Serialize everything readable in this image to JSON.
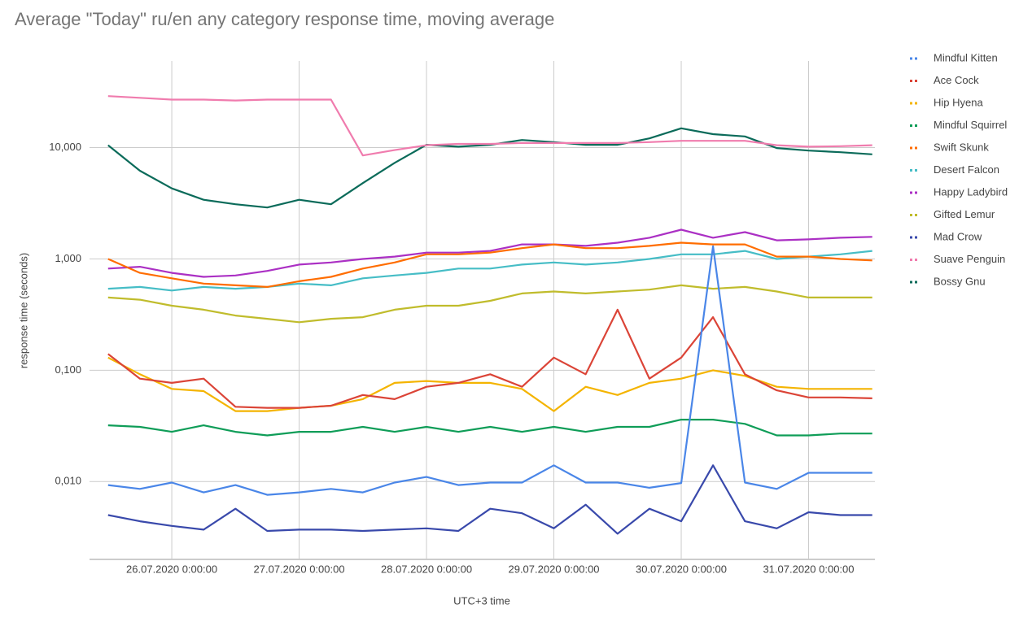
{
  "chart_data": {
    "type": "line",
    "title": "Average \"Today\" ru/en any category response time, moving average",
    "x_label": "UTC+3 time",
    "y_label": "response time (seconds)",
    "log_scale": true,
    "grid": true,
    "legend": "right",
    "xlim": [
      "25.07.2020 8:30:00",
      "31.07.2020 12:30:00"
    ],
    "xticks": [
      "26.07.2020 0:00:00",
      "27.07.2020 0:00:00",
      "28.07.2020 0:00:00",
      "29.07.2020 0:00:00",
      "30.07.2020 0:00:00",
      "31.07.2020 0:00:00"
    ],
    "ylim": [
      0.002,
      60
    ],
    "yticks": [
      {
        "value": 0.01,
        "label": "0,010"
      },
      {
        "value": 0.1,
        "label": "0,100"
      },
      {
        "value": 1,
        "label": "1,000"
      },
      {
        "value": 10,
        "label": "10,000"
      }
    ],
    "x": [
      "25.07.2020 12:00:00",
      "25.07.2020 18:00:00",
      "26.07.2020 0:00:00",
      "26.07.2020 6:00:00",
      "26.07.2020 12:00:00",
      "26.07.2020 18:00:00",
      "27.07.2020 0:00:00",
      "27.07.2020 6:00:00",
      "27.07.2020 12:00:00",
      "27.07.2020 18:00:00",
      "28.07.2020 0:00:00",
      "28.07.2020 6:00:00",
      "28.07.2020 12:00:00",
      "28.07.2020 18:00:00",
      "29.07.2020 0:00:00",
      "29.07.2020 6:00:00",
      "29.07.2020 12:00:00",
      "29.07.2020 18:00:00",
      "30.07.2020 0:00:00",
      "30.07.2020 6:00:00",
      "30.07.2020 12:00:00",
      "30.07.2020 18:00:00",
      "31.07.2020 0:00:00",
      "31.07.2020 6:00:00",
      "31.07.2020 12:00:00"
    ],
    "series": [
      {
        "name": "Mindful Kitten",
        "color": "#4a86e8",
        "values": [
          0.0093,
          0.0086,
          0.0098,
          0.008,
          0.0093,
          0.0076,
          0.008,
          0.0086,
          0.008,
          0.0098,
          0.011,
          0.0093,
          0.0098,
          0.0098,
          0.014,
          0.0098,
          0.0098,
          0.0088,
          0.0097,
          1.3,
          0.0098,
          0.0086,
          0.012,
          0.012,
          0.012
        ]
      },
      {
        "name": "Ace Cock",
        "color": "#db4437",
        "values": [
          0.14,
          0.084,
          0.077,
          0.084,
          0.047,
          0.046,
          0.046,
          0.048,
          0.06,
          0.055,
          0.071,
          0.077,
          0.092,
          0.071,
          0.13,
          0.092,
          0.35,
          0.084,
          0.13,
          0.3,
          0.092,
          0.066,
          0.057,
          0.057,
          0.056
        ]
      },
      {
        "name": "Hip Hyena",
        "color": "#f4b400",
        "values": [
          0.13,
          0.092,
          0.068,
          0.065,
          0.043,
          0.043,
          0.046,
          0.048,
          0.055,
          0.077,
          0.08,
          0.077,
          0.077,
          0.068,
          0.043,
          0.071,
          0.06,
          0.077,
          0.084,
          0.1,
          0.089,
          0.071,
          0.068,
          0.068,
          0.068
        ]
      },
      {
        "name": "Mindful Squirrel",
        "color": "#0f9d58",
        "values": [
          0.032,
          0.031,
          0.028,
          0.032,
          0.028,
          0.026,
          0.028,
          0.028,
          0.031,
          0.028,
          0.031,
          0.028,
          0.031,
          0.028,
          0.031,
          0.028,
          0.031,
          0.031,
          0.036,
          0.036,
          0.033,
          0.026,
          0.026,
          0.027,
          0.027
        ]
      },
      {
        "name": "Swift Skunk",
        "color": "#ff6d00",
        "values": [
          1.0,
          0.75,
          0.67,
          0.6,
          0.58,
          0.56,
          0.63,
          0.69,
          0.82,
          0.93,
          1.1,
          1.1,
          1.14,
          1.25,
          1.35,
          1.25,
          1.25,
          1.31,
          1.4,
          1.35,
          1.35,
          1.05,
          1.05,
          1.0,
          0.97
        ]
      },
      {
        "name": "Desert Falcon",
        "color": "#46bdc6",
        "values": [
          0.54,
          0.56,
          0.52,
          0.56,
          0.54,
          0.56,
          0.6,
          0.58,
          0.67,
          0.71,
          0.75,
          0.82,
          0.82,
          0.89,
          0.93,
          0.89,
          0.93,
          1.0,
          1.1,
          1.1,
          1.18,
          1.0,
          1.05,
          1.1,
          1.18
        ]
      },
      {
        "name": "Happy Ladybird",
        "color": "#ab30c4",
        "values": [
          0.82,
          0.85,
          0.75,
          0.69,
          0.71,
          0.78,
          0.89,
          0.93,
          1.0,
          1.05,
          1.14,
          1.14,
          1.18,
          1.35,
          1.35,
          1.31,
          1.4,
          1.55,
          1.83,
          1.55,
          1.74,
          1.47,
          1.5,
          1.55,
          1.58
        ]
      },
      {
        "name": "Gifted Lemur",
        "color": "#c0bc2c",
        "values": [
          0.45,
          0.43,
          0.38,
          0.35,
          0.31,
          0.29,
          0.27,
          0.29,
          0.3,
          0.35,
          0.38,
          0.38,
          0.42,
          0.49,
          0.51,
          0.49,
          0.51,
          0.53,
          0.58,
          0.54,
          0.56,
          0.51,
          0.45,
          0.45,
          0.45
        ]
      },
      {
        "name": "Mad Crow",
        "color": "#3949ab",
        "values": [
          0.005,
          0.0044,
          0.004,
          0.0037,
          0.0057,
          0.0036,
          0.0037,
          0.0037,
          0.0036,
          0.0037,
          0.0038,
          0.0036,
          0.0057,
          0.0052,
          0.0038,
          0.0062,
          0.0034,
          0.0057,
          0.0044,
          0.014,
          0.0044,
          0.0038,
          0.0053,
          0.005,
          0.005
        ]
      },
      {
        "name": "Suave Penguin",
        "color": "#f07cae",
        "values": [
          29,
          28,
          27,
          27,
          26.5,
          27,
          27,
          27,
          8.5,
          9.5,
          10.5,
          10.8,
          10.8,
          11,
          11,
          11,
          11,
          11.2,
          11.5,
          11.5,
          11.5,
          10.5,
          10.2,
          10.3,
          10.5
        ]
      },
      {
        "name": "Bossy Gnu",
        "color": "#0b6b5a",
        "values": [
          10.5,
          6.2,
          4.3,
          3.4,
          3.1,
          2.9,
          3.4,
          3.1,
          4.8,
          7.3,
          10.6,
          10.2,
          10.6,
          11.7,
          11.2,
          10.6,
          10.6,
          12.1,
          14.9,
          13.2,
          12.6,
          9.9,
          9.4,
          9.1,
          8.7
        ]
      }
    ]
  }
}
